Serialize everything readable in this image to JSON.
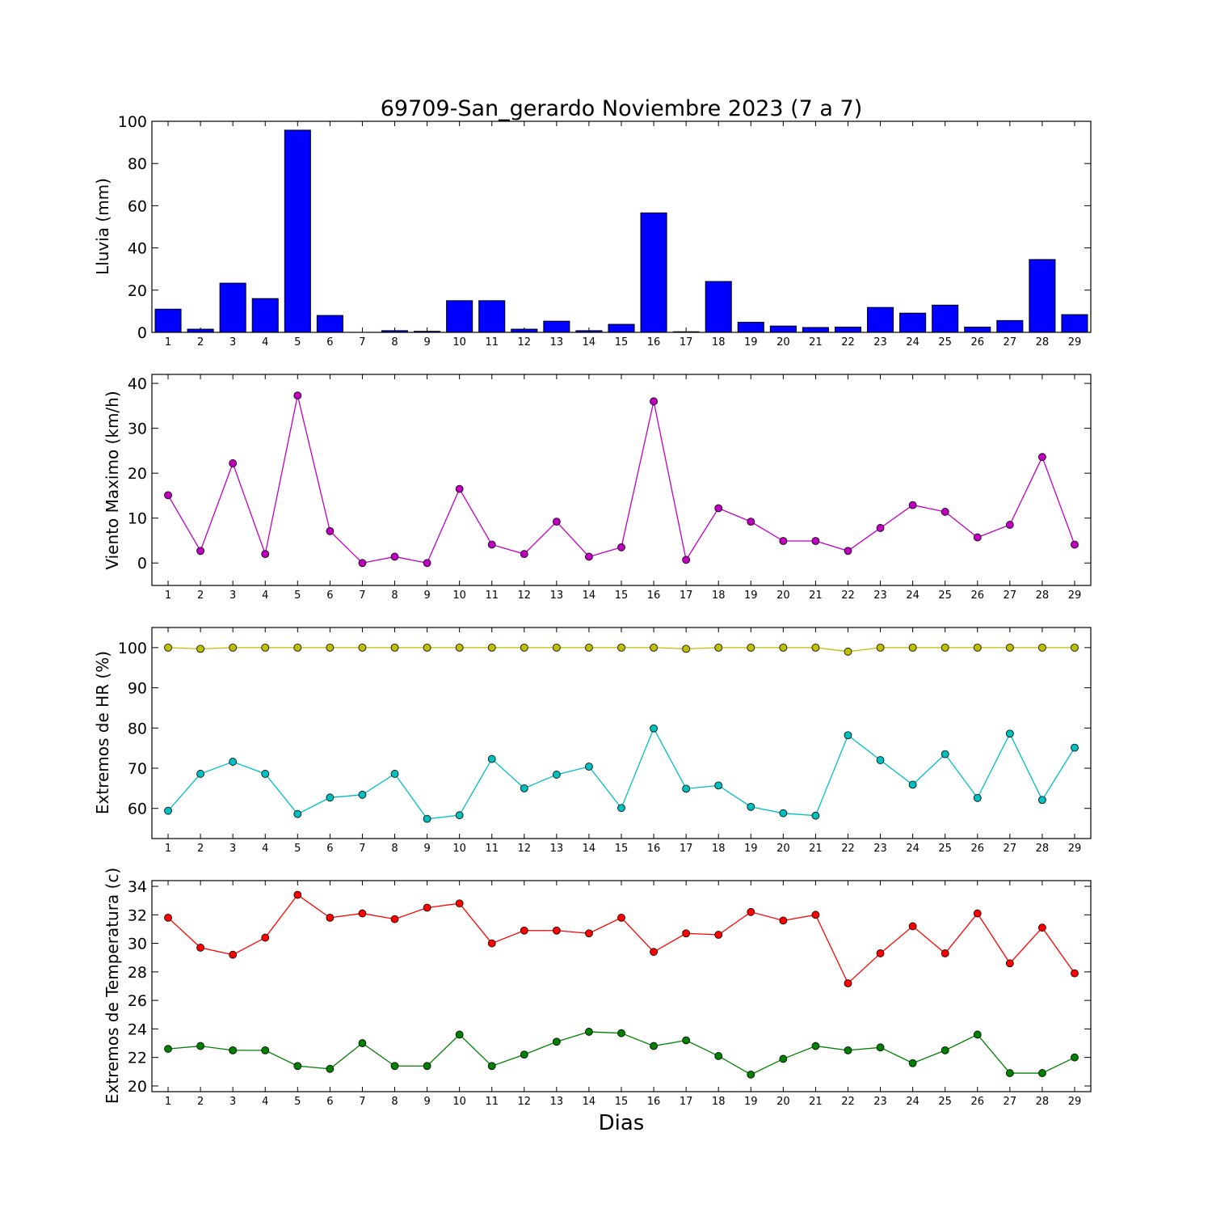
{
  "title": "69709-San_gerardo Noviembre 2023  (7 a 7)",
  "xlabel": "Dias",
  "chart_data": [
    {
      "type": "bar",
      "ylabel": "Lluvia (mm)",
      "ylim": [
        0,
        100
      ],
      "yticks": [
        0,
        20,
        40,
        60,
        80,
        100
      ],
      "categories": [
        "1",
        "2",
        "3",
        "4",
        "5",
        "6",
        "7",
        "8",
        "9",
        "10",
        "11",
        "12",
        "13",
        "14",
        "15",
        "16",
        "17",
        "18",
        "19",
        "20",
        "21",
        "22",
        "23",
        "24",
        "25",
        "26",
        "27",
        "28",
        "29"
      ],
      "series": [
        {
          "color": "#0000ff",
          "values": [
            11.0,
            1.5,
            23.3,
            16.0,
            95.8,
            8.0,
            0.0,
            0.8,
            0.5,
            15.0,
            15.0,
            1.5,
            5.3,
            0.8,
            3.8,
            56.6,
            0.3,
            24.1,
            4.8,
            3.0,
            2.3,
            2.5,
            11.8,
            9.1,
            12.9,
            2.5,
            5.6,
            34.5,
            8.4
          ]
        }
      ]
    },
    {
      "type": "line",
      "ylabel": "Viento Maximo (km/h)",
      "ylim": [
        -5,
        42
      ],
      "yticks": [
        0,
        10,
        20,
        30,
        40
      ],
      "categories": [
        "1",
        "2",
        "3",
        "4",
        "5",
        "6",
        "7",
        "8",
        "9",
        "10",
        "11",
        "12",
        "13",
        "14",
        "15",
        "16",
        "17",
        "18",
        "19",
        "20",
        "21",
        "22",
        "23",
        "24",
        "25",
        "26",
        "27",
        "28",
        "29"
      ],
      "series": [
        {
          "color": "#bf00bf",
          "values": [
            15.1,
            2.7,
            22.2,
            2.0,
            37.3,
            7.1,
            0.0,
            1.4,
            0.0,
            16.5,
            4.1,
            2.0,
            9.2,
            1.4,
            3.5,
            36.0,
            0.7,
            12.2,
            9.2,
            4.9,
            4.9,
            2.7,
            7.8,
            12.9,
            11.4,
            5.7,
            8.5,
            23.6,
            4.1
          ]
        }
      ]
    },
    {
      "type": "line",
      "ylabel": "Extremos de HR (%)",
      "ylim": [
        52.5,
        105
      ],
      "yticks": [
        60,
        70,
        80,
        90,
        100
      ],
      "categories": [
        "1",
        "2",
        "3",
        "4",
        "5",
        "6",
        "7",
        "8",
        "9",
        "10",
        "11",
        "12",
        "13",
        "14",
        "15",
        "16",
        "17",
        "18",
        "19",
        "20",
        "21",
        "22",
        "23",
        "24",
        "25",
        "26",
        "27",
        "28",
        "29"
      ],
      "series": [
        {
          "color": "#bfbf00",
          "values": [
            100,
            99.7,
            100,
            100,
            100,
            100,
            100,
            100,
            100,
            100,
            100,
            100,
            100,
            100,
            100,
            100,
            99.7,
            100,
            100,
            100,
            100,
            99.0,
            100,
            100,
            100,
            100,
            100,
            100,
            100
          ]
        },
        {
          "color": "#00bfbf",
          "values": [
            59.4,
            68.6,
            71.6,
            68.6,
            58.6,
            62.7,
            63.4,
            68.6,
            57.4,
            58.3,
            72.3,
            65.0,
            68.4,
            70.4,
            60.1,
            79.9,
            64.9,
            65.7,
            60.4,
            58.8,
            58.2,
            78.2,
            72.0,
            65.9,
            73.5,
            62.6,
            78.6,
            62.1,
            75.1
          ]
        }
      ]
    },
    {
      "type": "line",
      "ylabel": "Extremos de Temperatura (c)",
      "ylim": [
        19.6,
        34.4
      ],
      "yticks": [
        20,
        22,
        24,
        26,
        28,
        30,
        32,
        34
      ],
      "categories": [
        "1",
        "2",
        "3",
        "4",
        "5",
        "6",
        "7",
        "8",
        "9",
        "10",
        "11",
        "12",
        "13",
        "14",
        "15",
        "16",
        "17",
        "18",
        "19",
        "20",
        "21",
        "22",
        "23",
        "24",
        "25",
        "26",
        "27",
        "28",
        "29"
      ],
      "series": [
        {
          "color": "#ff0000",
          "values": [
            31.8,
            29.7,
            29.2,
            30.4,
            33.4,
            31.8,
            32.1,
            31.7,
            32.5,
            32.8,
            30.0,
            30.9,
            30.9,
            30.7,
            31.8,
            29.4,
            30.7,
            30.6,
            32.2,
            31.6,
            32.0,
            27.2,
            29.3,
            31.2,
            29.3,
            32.1,
            28.6,
            31.1,
            27.9
          ]
        },
        {
          "color": "#008000",
          "values": [
            22.6,
            22.8,
            22.5,
            22.5,
            21.4,
            21.2,
            23.0,
            21.4,
            21.4,
            23.6,
            21.4,
            22.2,
            23.1,
            23.8,
            23.7,
            22.8,
            23.2,
            22.1,
            20.8,
            21.9,
            22.8,
            22.5,
            22.7,
            21.6,
            22.5,
            23.6,
            20.9,
            20.9,
            22.0
          ]
        }
      ]
    }
  ]
}
